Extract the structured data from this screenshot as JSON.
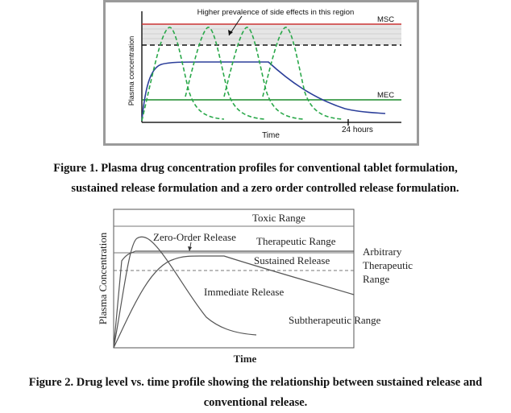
{
  "figure1": {
    "chart_data": {
      "type": "line",
      "xlabel": "Time",
      "ylabel": "Plasma concentration",
      "annotation": "Higher prevalence of side effects in this region",
      "thresholds": [
        {
          "label": "MSC",
          "color": "#cc3333"
        },
        {
          "label": "MEC",
          "color": "#1a8a2a"
        }
      ],
      "x_tick_label": "24 hours",
      "series": [
        {
          "type": "conventional tablet (repeated dosing)",
          "color": "#2aa84a",
          "style": "dashed"
        },
        {
          "type": "sustained release",
          "color": "#2c3f9a",
          "style": "solid"
        }
      ]
    }
  },
  "caption1": {
    "line1": "Figure 1. Plasma drug concentration profiles for conventional tablet formulation,",
    "line2": "sustained release formulation and a zero order controlled release formulation."
  },
  "figure2": {
    "chart_data": {
      "type": "line",
      "xlabel": "Time",
      "ylabel": "Plasma Concentration",
      "ranges": [
        "Toxic Range",
        "Therapeutic Range",
        "Subtherapeutic Range"
      ],
      "side_label": [
        "Arbitrary",
        "Therapeutic",
        "Range"
      ],
      "series": [
        {
          "name": "Zero-Order Release"
        },
        {
          "name": "Sustained Release"
        },
        {
          "name": "Immediate Release"
        }
      ]
    }
  },
  "caption2": {
    "line1": "Figure 2. Drug level vs. time profile showing the relationship between sustained release and",
    "line2": "conventional release."
  }
}
